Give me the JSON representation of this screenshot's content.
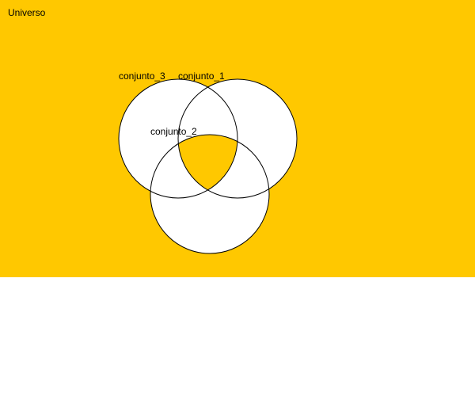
{
  "diagram": {
    "type": "venn",
    "universe_label": "Universo",
    "colors": {
      "universe_fill": "#ffc800",
      "set_fill": "#ffffff",
      "triple_intersection_fill": "#ffc800",
      "stroke": "#000000",
      "background": "#ffffff"
    },
    "sets": [
      {
        "label": "conjunto_1"
      },
      {
        "label": "conjunto_2"
      },
      {
        "label": "conjunto_3"
      }
    ],
    "shaded_region": "conjunto_1 ∩ conjunto_2 ∩ conjunto_3"
  }
}
